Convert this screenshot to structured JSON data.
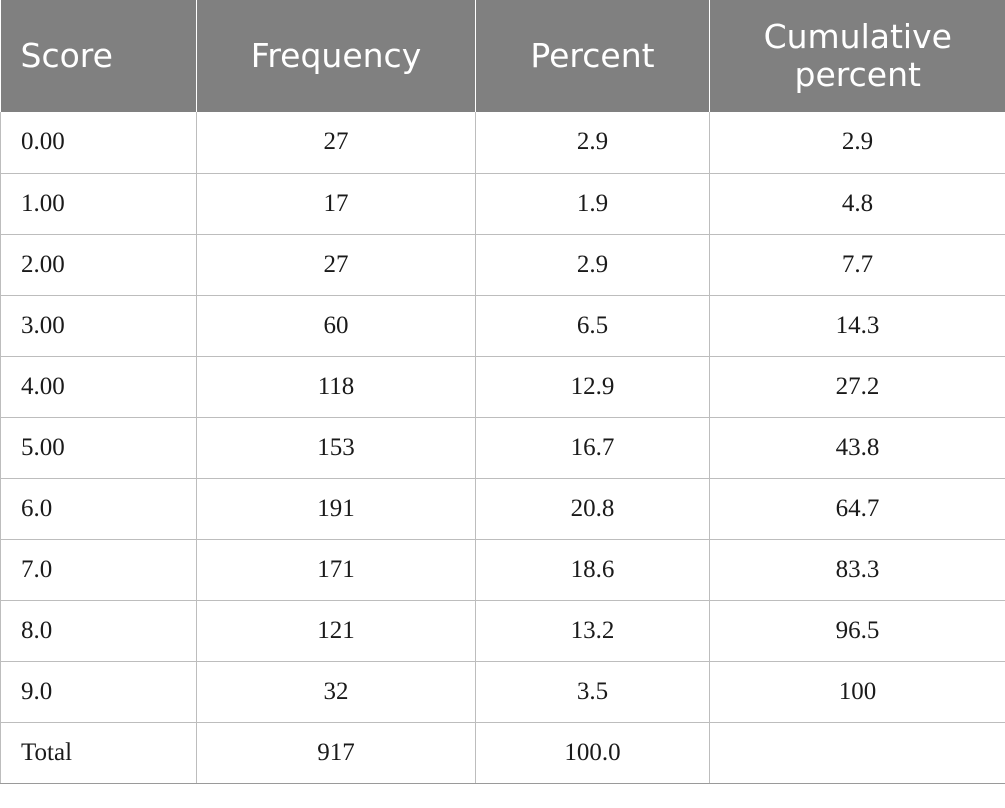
{
  "table": {
    "headers": [
      "Score",
      "Frequency",
      "Percent",
      "Cumulative percent"
    ],
    "rows": [
      [
        "0.00",
        "27",
        "2.9",
        "2.9"
      ],
      [
        "1.00",
        "17",
        "1.9",
        "4.8"
      ],
      [
        "2.00",
        "27",
        "2.9",
        "7.7"
      ],
      [
        "3.00",
        "60",
        "6.5",
        "14.3"
      ],
      [
        "4.00",
        "118",
        "12.9",
        "27.2"
      ],
      [
        "5.00",
        "153",
        "16.7",
        "43.8"
      ],
      [
        "6.0",
        "191",
        "20.8",
        "64.7"
      ],
      [
        "7.0",
        "171",
        "18.6",
        "83.3"
      ],
      [
        "8.0",
        "121",
        "13.2",
        "96.5"
      ],
      [
        "9.0",
        "32",
        "3.5",
        "100"
      ],
      [
        "Total",
        "917",
        "100.0",
        ""
      ]
    ]
  },
  "colors": {
    "header_background": "#808080",
    "header_text": "#ffffff",
    "grid_line": "#bdbdbd",
    "body_text": "#1a1a1a"
  }
}
